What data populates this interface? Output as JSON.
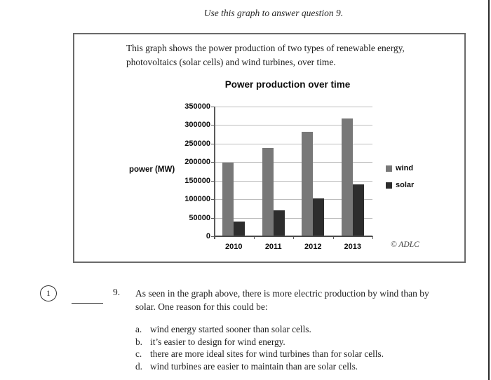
{
  "page": {
    "caption": "Use this graph to answer question 9."
  },
  "graph_box": {
    "description_lines": [
      "This graph shows the power production of two types of renewable energy,",
      "photovoltaics (solar cells) and wind turbines, over time."
    ]
  },
  "chart_data": {
    "type": "bar",
    "title": "Power production over time",
    "categories": [
      "2010",
      "2011",
      "2012",
      "2013"
    ],
    "series": [
      {
        "name": "wind",
        "color": "#787878",
        "values": [
          198000,
          238000,
          282000,
          318000
        ]
      },
      {
        "name": "solar",
        "color": "#2d2d2d",
        "values": [
          40000,
          70000,
          102000,
          140000
        ]
      }
    ],
    "xlabel": "",
    "ylabel": "power (MW)",
    "ylim": [
      0,
      350000
    ],
    "ytick_step": 50000,
    "grid": true,
    "legend_position": "right",
    "credit": "© ADLC"
  },
  "question": {
    "margin_mark": "1",
    "number": "9.",
    "lines": [
      "As seen in the graph above, there is more electric production by wind than by",
      "solar.  One reason for this could be:"
    ],
    "options": [
      {
        "letter": "a.",
        "text": "wind energy started sooner than solar cells."
      },
      {
        "letter": "b.",
        "text": "it’s easier to design for wind energy."
      },
      {
        "letter": "c.",
        "text": "there are more ideal sites for wind turbines than for solar cells."
      },
      {
        "letter": "d.",
        "text": "wind turbines are easier to maintain than are solar cells."
      }
    ]
  }
}
